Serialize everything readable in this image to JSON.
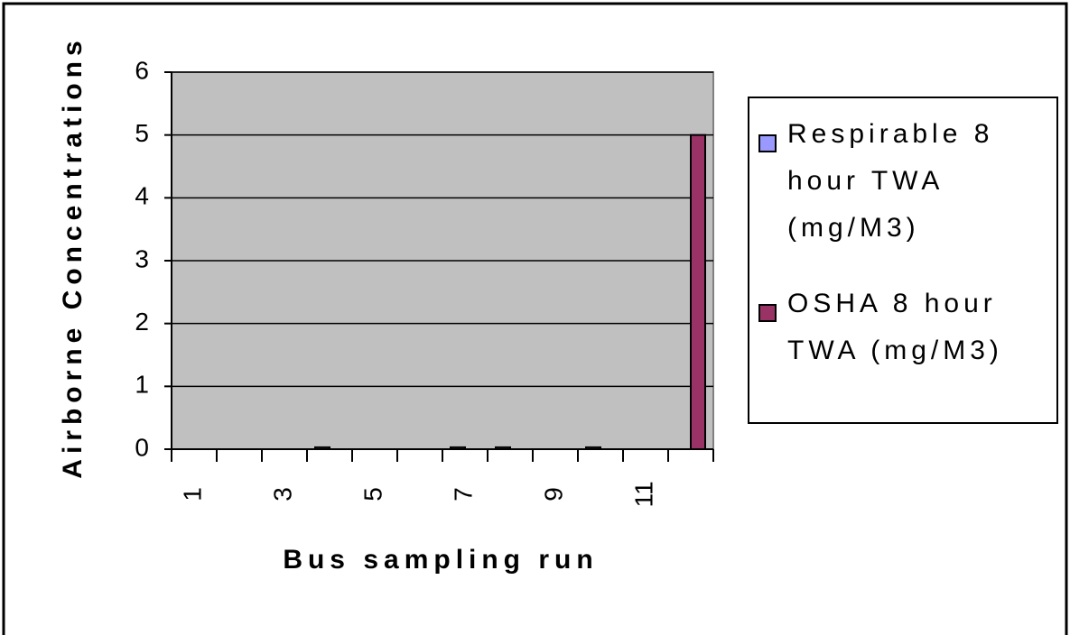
{
  "chart_data": {
    "type": "bar",
    "x_label": "Bus sampling run",
    "y_label": "Airborne Concentrations",
    "categories": [
      "1",
      null,
      "3",
      null,
      "5",
      null,
      "7",
      null,
      "9",
      null,
      "11",
      null
    ],
    "series": [
      {
        "name": "Respirable 8 hour TWA (mg/M3)",
        "color": "#9999ff",
        "values": [
          0,
          0,
          0,
          0.03,
          0,
          0,
          0.03,
          0.03,
          0,
          0.03,
          0,
          0
        ]
      },
      {
        "name": "OSHA 8 hour TWA (mg/M3)",
        "color": "#993366",
        "values": [
          0,
          0,
          0,
          0,
          0,
          0,
          0,
          0,
          0,
          0,
          0,
          5
        ]
      }
    ],
    "ylim": [
      0,
      6
    ],
    "yticks": [
      0,
      1,
      2,
      3,
      4,
      5,
      6
    ],
    "grid": true,
    "legend": "right"
  }
}
